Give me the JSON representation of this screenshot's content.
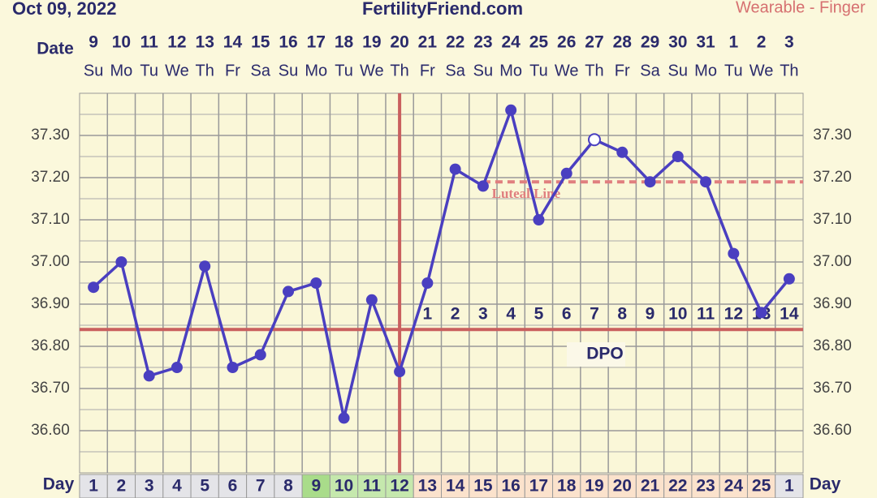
{
  "header": {
    "date": "Oct 09, 2022",
    "site": "FertilityFriend.com",
    "source": "Wearable - Finger"
  },
  "chart_data": {
    "type": "line",
    "date_label": "Date",
    "day_label": "Day",
    "categories": [
      "9",
      "10",
      "11",
      "12",
      "13",
      "14",
      "15",
      "16",
      "17",
      "18",
      "19",
      "20",
      "21",
      "22",
      "23",
      "24",
      "25",
      "26",
      "27",
      "28",
      "29",
      "30",
      "31",
      "1",
      "2",
      "3"
    ],
    "weekdays": [
      "Su",
      "Mo",
      "Tu",
      "We",
      "Th",
      "Fr",
      "Sa",
      "Su",
      "Mo",
      "Tu",
      "We",
      "Th",
      "Fr",
      "Sa",
      "Su",
      "Mo",
      "Tu",
      "We",
      "Th",
      "Fr",
      "Sa",
      "Su",
      "Mo",
      "Tu",
      "We",
      "Th"
    ],
    "cycle_days": [
      1,
      2,
      3,
      4,
      5,
      6,
      7,
      8,
      9,
      10,
      11,
      12,
      13,
      14,
      15,
      16,
      17,
      18,
      19,
      20,
      21,
      22,
      23,
      24,
      25,
      1
    ],
    "day_cell_colors": [
      "#e4e4e8",
      "#e4e4e8",
      "#e4e4e8",
      "#e4e4e8",
      "#e4e4e8",
      "#e4e4e8",
      "#e4e4e8",
      "#e4e4e8",
      "#a9dc8a",
      "#c5e8ad",
      "#c5e8ad",
      "#c5e8ad",
      "#fbe2cc",
      "#fbe2cc",
      "#fbe2cc",
      "#fbe2cc",
      "#fbe2cc",
      "#fbe2cc",
      "#fbe2cc",
      "#fbe2cc",
      "#fbe2cc",
      "#fbe2cc",
      "#fbe2cc",
      "#fbe2cc",
      "#fbe2cc",
      "#e4e4e8"
    ],
    "dpo": [
      null,
      null,
      null,
      null,
      null,
      null,
      null,
      null,
      null,
      null,
      null,
      null,
      1,
      2,
      3,
      4,
      5,
      6,
      7,
      8,
      9,
      10,
      11,
      12,
      13,
      14
    ],
    "dpo_label": "DPO",
    "series": [
      {
        "name": "Temperature",
        "color": "#4a3fc0",
        "values": [
          36.94,
          37.0,
          36.73,
          36.75,
          36.99,
          36.75,
          36.78,
          36.93,
          36.95,
          36.63,
          36.91,
          36.74,
          36.95,
          37.22,
          37.18,
          37.36,
          37.1,
          37.21,
          37.29,
          37.26,
          37.19,
          37.25,
          37.19,
          37.02,
          36.88,
          36.96
        ]
      }
    ],
    "open_points": [
      18
    ],
    "coverline": {
      "value": 36.84,
      "color": "#c9605f"
    },
    "ovulation_day_index": 11,
    "luteal_line": {
      "label": "Luteal Line",
      "value": 37.19,
      "start_index": 14,
      "color": "#e07f7f"
    },
    "ylim": [
      36.5,
      37.4
    ],
    "yticks": [
      {
        "value": 36.6,
        "label": "36.60"
      },
      {
        "value": 36.7,
        "label": "36.70"
      },
      {
        "value": 36.8,
        "label": "36.80"
      },
      {
        "value": 36.9,
        "label": "36.90"
      },
      {
        "value": 37.0,
        "label": "37.00"
      },
      {
        "value": 37.1,
        "label": "37.10"
      },
      {
        "value": 37.2,
        "label": "37.20"
      },
      {
        "value": 37.3,
        "label": "37.30"
      }
    ],
    "y_minor_ticks": [
      36.55,
      36.65,
      36.75,
      36.85,
      36.95,
      37.05,
      37.15,
      37.25,
      37.35
    ],
    "grid": true
  }
}
